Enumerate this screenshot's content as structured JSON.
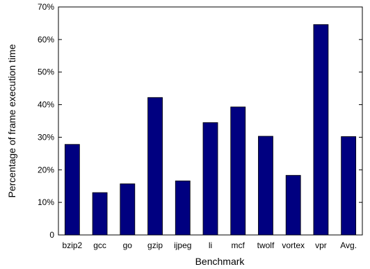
{
  "chart_data": {
    "type": "bar",
    "categories": [
      "bzip2",
      "gcc",
      "go",
      "gzip",
      "ijpeg",
      "li",
      "mcf",
      "twolf",
      "vortex",
      "vpr",
      "Avg."
    ],
    "values": [
      27.8,
      13.0,
      15.7,
      42.2,
      16.6,
      34.5,
      39.3,
      30.3,
      18.3,
      64.6,
      30.2
    ],
    "xlabel": "Benchmark",
    "ylabel": "Percentage of frame execution time",
    "ylim": [
      0,
      70
    ],
    "y_ticks": [
      "0",
      "10%",
      "20%",
      "30%",
      "40%",
      "50%",
      "60%",
      "70%"
    ],
    "grid": false,
    "bar_color": "#000080",
    "bar_edge_color": "#000000"
  }
}
